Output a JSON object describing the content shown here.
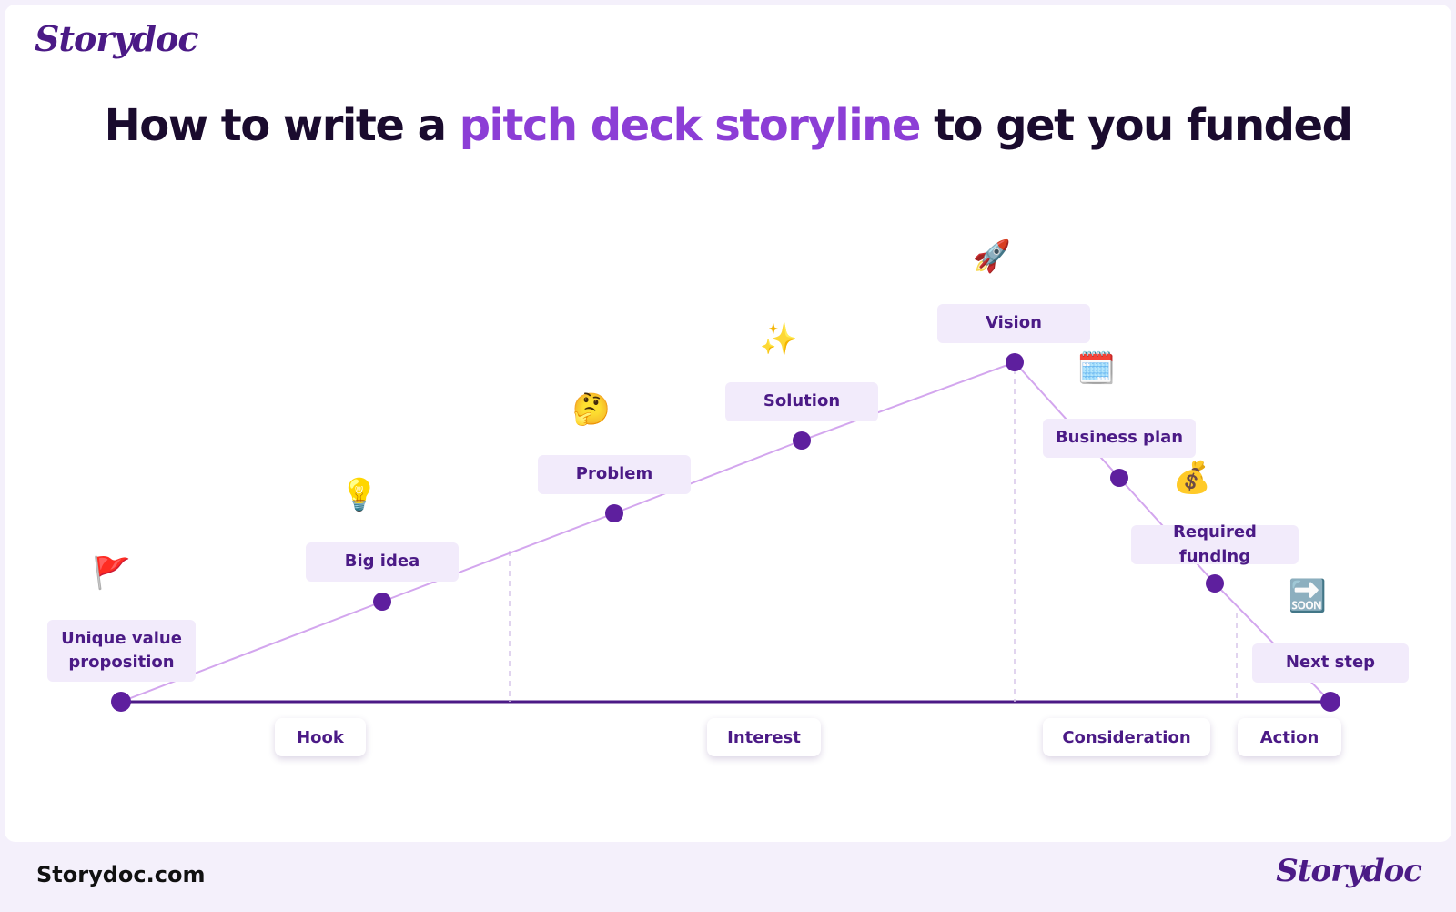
{
  "brand": {
    "logo_text": "Storydoc",
    "brand_color": "#4b1a86",
    "accent_color": "#8c3ed6"
  },
  "headline": {
    "part1": "How to write a ",
    "highlight": "pitch deck storyline",
    "part2": " to get you funded"
  },
  "steps": [
    {
      "label": "Unique value proposition",
      "icon": "red-flag-icon",
      "emoji": "🚩"
    },
    {
      "label": "Big idea",
      "icon": "light-bulb-icon",
      "emoji": "💡"
    },
    {
      "label": "Problem",
      "icon": "thinking-face-icon",
      "emoji": "🤔"
    },
    {
      "label": "Solution",
      "icon": "sparkles-icon",
      "emoji": "✨"
    },
    {
      "label": "Vision",
      "icon": "rocket-icon",
      "emoji": "🚀"
    },
    {
      "label": "Business plan",
      "icon": "calendar-icon",
      "emoji": "🗓️"
    },
    {
      "label": "Required funding",
      "icon": "money-bag-icon",
      "emoji": "💰"
    },
    {
      "label": "Next step",
      "icon": "soon-arrow-icon",
      "emoji": "🔜"
    }
  ],
  "stages": [
    {
      "label": "Hook"
    },
    {
      "label": "Interest"
    },
    {
      "label": "Consideration"
    },
    {
      "label": "Action"
    }
  ],
  "footer": {
    "url": "Storydoc.com",
    "logo_text": "Storydoc"
  }
}
